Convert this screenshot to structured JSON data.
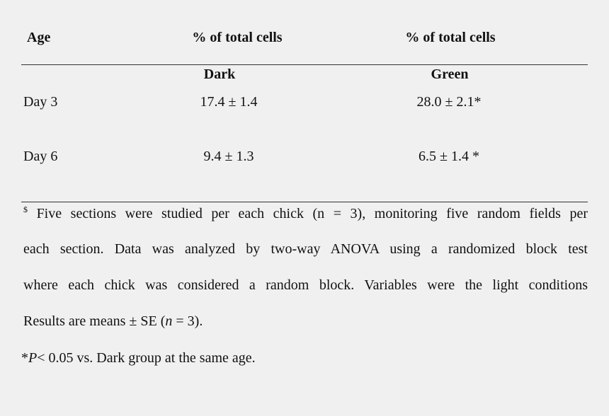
{
  "table": {
    "headers": [
      "Age",
      "% of total cells",
      "% of total cells"
    ],
    "subheaders": [
      "Dark",
      "Green"
    ],
    "rows": [
      {
        "age": "Day 3",
        "dark": "17.4 ± 1.4",
        "green": "28.0 ± 2.1*"
      },
      {
        "age": "Day 6",
        "dark": "9.4 ± 1.3",
        "green": "6.5 ± 1.4 *"
      }
    ]
  },
  "footnote": {
    "marker": "$",
    "line1": "Five sections were studied per each chick (n = 3), monitoring five random fields per",
    "line2": "each section. Data was analyzed by two-way ANOVA using a randomized block test",
    "line3": "where each chick was considered a random block. Variables were the light conditions",
    "line4_pre": "Results are means ± SE (",
    "line4_n": "n",
    "line4_post": " = 3).",
    "sig_star": "*",
    "sig_p": "P",
    "sig_rest": "< 0.05 vs. Dark group at the same age."
  }
}
